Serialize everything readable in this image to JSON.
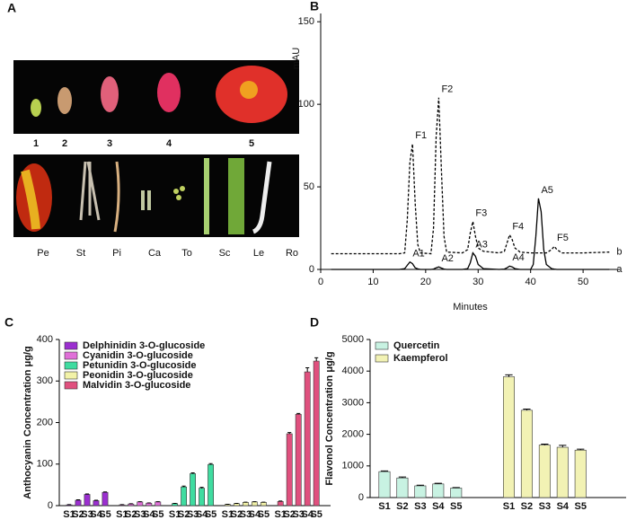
{
  "photo_panel": {
    "panel": "A",
    "stages": [
      "1",
      "2",
      "3",
      "4",
      "5"
    ],
    "tissues": [
      "Pe",
      "St",
      "Pi",
      "Ca",
      "To",
      "Sc",
      "Le",
      "Ro"
    ]
  },
  "chart_data": [
    {
      "type": "line",
      "panel": "B",
      "xlabel": "Minutes",
      "ylabel": "mAU",
      "xlim": [
        0,
        57
      ],
      "ylim": [
        0,
        155
      ],
      "xticks": [
        0,
        10,
        20,
        30,
        40,
        50
      ],
      "yticks": [
        0,
        50,
        100,
        150
      ],
      "x": [
        2,
        5,
        10,
        15,
        16,
        16.5,
        17,
        17.5,
        18,
        18.5,
        19,
        21,
        21.5,
        22,
        22.5,
        23,
        23.5,
        24,
        27,
        28,
        28.5,
        29,
        29.5,
        30,
        31,
        34,
        35,
        35.5,
        36,
        36.5,
        37,
        38,
        40,
        40.5,
        41,
        41.5,
        42,
        42.5,
        43,
        44,
        44.5,
        45,
        46,
        50,
        55
      ],
      "series": [
        {
          "name": "a",
          "color": "#000000",
          "dash": false,
          "peak_labels": [
            "A1",
            "A2",
            "A3",
            "A4",
            "A5"
          ],
          "values": [
            0,
            0,
            0,
            0,
            0.5,
            2.5,
            4.5,
            3.5,
            1,
            0.3,
            0,
            0,
            0.2,
            1,
            1.5,
            0.8,
            0.2,
            0,
            0,
            0.5,
            4,
            10,
            8,
            3,
            0.5,
            0,
            0.2,
            1,
            2,
            1.5,
            0.5,
            0,
            0,
            3,
            20,
            43,
            35,
            12,
            3,
            0.5,
            0.2,
            0,
            0,
            0,
            0
          ]
        },
        {
          "name": "b",
          "color": "#000000",
          "dash": true,
          "peak_labels": [
            "F1",
            "F2",
            "F3",
            "F4",
            "F5"
          ],
          "values": [
            9.5,
            9.5,
            9.5,
            9.5,
            10,
            30,
            65,
            76,
            40,
            15,
            10,
            9.5,
            25,
            80,
            104,
            60,
            20,
            10.5,
            10,
            12,
            22,
            29,
            20,
            13,
            11,
            10,
            11,
            16,
            21,
            18,
            13,
            10.5,
            10,
            10,
            10,
            10,
            10,
            10,
            10,
            12,
            14,
            12,
            10,
            10,
            10.5
          ]
        }
      ]
    },
    {
      "type": "bar",
      "panel": "C",
      "ylabel": "Anthocyanin Concentration μg/g",
      "ylim": [
        0,
        400
      ],
      "yticks": [
        0,
        100,
        200,
        300,
        400
      ],
      "categories": [
        "S1",
        "S2",
        "S3",
        "S4",
        "S5"
      ],
      "series": [
        {
          "name": "Delphinidin 3-O-glucoside",
          "color": "#9b2fd0",
          "values": [
            2,
            13,
            27,
            12,
            32
          ],
          "errors": [
            0.5,
            1,
            1,
            1,
            1
          ]
        },
        {
          "name": "Cyanidin 3-O-glucoside",
          "color": "#e070d8",
          "values": [
            2,
            4,
            9,
            6,
            9
          ],
          "errors": [
            0.3,
            0.5,
            0.5,
            0.5,
            0.5
          ]
        },
        {
          "name": "Petunidin 3-O-glucoside",
          "color": "#3fdca0",
          "values": [
            5,
            45,
            77,
            42,
            99
          ],
          "errors": [
            0.5,
            2,
            2,
            2,
            2
          ]
        },
        {
          "name": "Peonidin 3-O-glucoside",
          "color": "#f2f2a8",
          "values": [
            3,
            5,
            8,
            9,
            8
          ],
          "errors": [
            0.3,
            0.5,
            0.5,
            0.5,
            0.5
          ]
        },
        {
          "name": "Malvidin 3-O-glucoside",
          "color": "#e0507e",
          "values": [
            10,
            173,
            220,
            322,
            348
          ],
          "errors": [
            1,
            3,
            2,
            10,
            8
          ]
        }
      ]
    },
    {
      "type": "bar",
      "panel": "D",
      "ylabel": "Flavonol Concentration μg/g",
      "ylim": [
        0,
        5000
      ],
      "yticks": [
        0,
        1000,
        2000,
        3000,
        4000,
        5000
      ],
      "categories": [
        "S1",
        "S2",
        "S3",
        "S4",
        "S5"
      ],
      "series": [
        {
          "name": "Quercetin",
          "color": "#c8f2e2",
          "values": [
            820,
            620,
            370,
            430,
            300
          ],
          "errors": [
            20,
            30,
            20,
            20,
            15
          ]
        },
        {
          "name": "Kaempferol",
          "color": "#f2f2b4",
          "values": [
            3820,
            2760,
            1660,
            1590,
            1500
          ],
          "errors": [
            60,
            40,
            30,
            60,
            30
          ]
        }
      ]
    }
  ]
}
